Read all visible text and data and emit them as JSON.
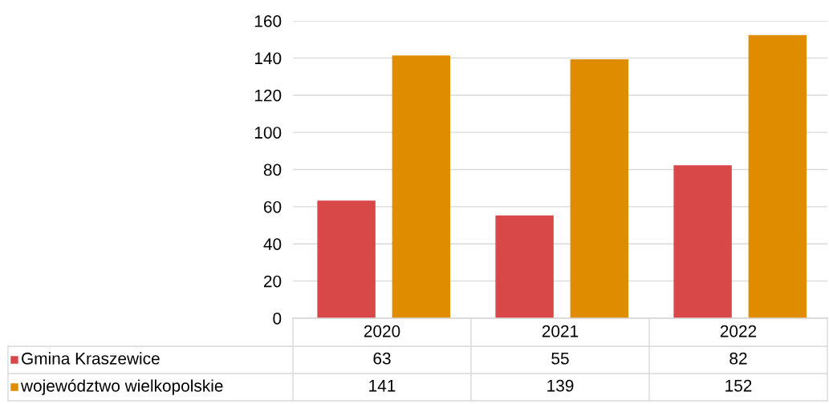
{
  "chart_data": {
    "type": "bar",
    "categories": [
      "2020",
      "2021",
      "2022"
    ],
    "series": [
      {
        "name": "Gmina Kraszewice",
        "color": "#d94848",
        "values": [
          63,
          55,
          82
        ]
      },
      {
        "name": "województwo wielkopolskie",
        "color": "#e08c00",
        "values": [
          141,
          139,
          152
        ]
      }
    ],
    "ylim": [
      0,
      160
    ],
    "yticks": [
      0,
      20,
      40,
      60,
      80,
      100,
      120,
      140,
      160
    ],
    "grid": "y",
    "legend": "bottom",
    "data_labels": true
  }
}
